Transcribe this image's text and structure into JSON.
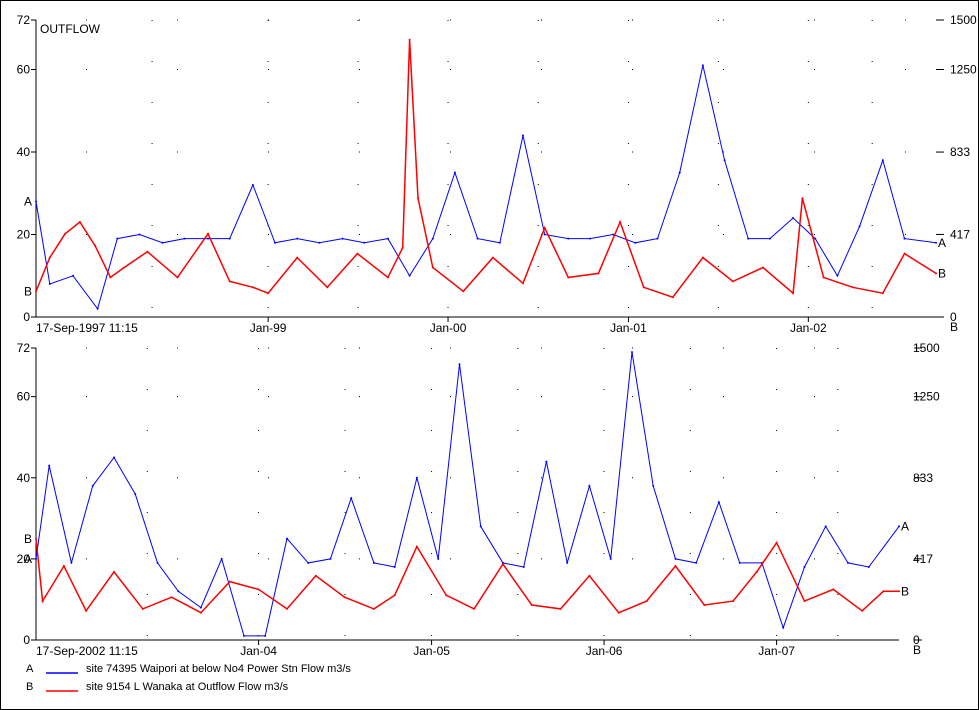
{
  "colors": {
    "series_a": "#0000ff",
    "series_b": "#ff0000",
    "frame": "#000000",
    "background": "#ffffff"
  },
  "legend": [
    {
      "key": "A",
      "text": "site 74395 Waipori at below No4 Power Stn   Flow m3/s",
      "color": "#0000ff"
    },
    {
      "key": "B",
      "text": "site 9154 L Wanaka at Outflow   Flow m3/s",
      "color": "#ff0000"
    }
  ],
  "chart_data": [
    {
      "type": "line",
      "title": "OUTFLOW",
      "start_label": "17-Sep-1997 11:15",
      "x_range": [
        "1997-09-17",
        "2002-09-17"
      ],
      "x_ticks": [
        "Jan-99",
        "Jan-00",
        "Jan-01",
        "Jan-02"
      ],
      "x_tick_dates": [
        "1999-01-01",
        "2000-01-01",
        "2001-01-01",
        "2002-01-01"
      ],
      "left_axis": {
        "ylim": [
          0,
          72
        ],
        "ticks": [
          0,
          20,
          40,
          60,
          72
        ],
        "series": "A"
      },
      "right_axis": {
        "ylim": [
          0,
          1500
        ],
        "ticks": [
          0,
          417,
          833,
          1250,
          1500
        ],
        "series": "B",
        "label": "B"
      },
      "series": [
        {
          "name": "A",
          "axis": "left",
          "color": "#0000ff",
          "x": [
            "1997-09-17",
            "1997-10-15",
            "1997-12-01",
            "1998-01-20",
            "1998-03-01",
            "1998-04-15",
            "1998-06-01",
            "1998-07-15",
            "1998-09-01",
            "1998-10-15",
            "1998-12-01",
            "1999-01-15",
            "1999-03-01",
            "1999-04-15",
            "1999-06-01",
            "1999-07-15",
            "1999-09-01",
            "1999-10-15",
            "1999-12-01",
            "2000-01-15",
            "2000-03-01",
            "2000-04-15",
            "2000-06-01",
            "2000-07-15",
            "2000-09-01",
            "2000-10-15",
            "2000-12-01",
            "2001-01-15",
            "2001-03-01",
            "2001-04-15",
            "2001-06-01",
            "2001-07-15",
            "2001-09-01",
            "2001-10-15",
            "2001-12-01",
            "2002-01-15",
            "2002-03-01",
            "2002-04-15",
            "2002-06-01",
            "2002-07-15",
            "2002-09-17"
          ],
          "values": [
            28,
            8,
            10,
            2,
            19,
            20,
            18,
            19,
            19,
            19,
            32,
            18,
            19,
            18,
            19,
            18,
            19,
            10,
            19,
            35,
            19,
            18,
            44,
            20,
            19,
            19,
            20,
            18,
            19,
            35,
            61,
            38,
            19,
            19,
            24,
            19,
            10,
            22,
            38,
            19,
            18
          ]
        },
        {
          "name": "B",
          "axis": "right",
          "color": "#ff0000",
          "x": [
            "1997-09-17",
            "1997-10-15",
            "1997-11-15",
            "1997-12-15",
            "1998-01-15",
            "1998-02-15",
            "1998-03-15",
            "1998-05-01",
            "1998-07-01",
            "1998-09-01",
            "1998-10-15",
            "1998-12-01",
            "1999-01-01",
            "1999-03-01",
            "1999-05-01",
            "1999-07-01",
            "1999-09-01",
            "1999-10-01",
            "1999-10-15",
            "1999-11-01",
            "1999-12-01",
            "2000-02-01",
            "2000-04-01",
            "2000-06-01",
            "2000-07-15",
            "2000-09-01",
            "2000-11-01",
            "2000-12-15",
            "2001-02-01",
            "2001-04-01",
            "2001-06-01",
            "2001-08-01",
            "2001-10-01",
            "2001-12-01",
            "2001-12-20",
            "2002-02-01",
            "2002-04-01",
            "2002-06-01",
            "2002-07-15",
            "2002-09-17"
          ],
          "values": [
            130,
            300,
            420,
            480,
            360,
            200,
            250,
            330,
            200,
            420,
            180,
            150,
            120,
            300,
            150,
            320,
            200,
            350,
            1400,
            600,
            250,
            130,
            300,
            170,
            450,
            200,
            220,
            480,
            150,
            100,
            300,
            180,
            250,
            120,
            600,
            200,
            150,
            120,
            320,
            220
          ]
        }
      ]
    },
    {
      "type": "line",
      "start_label": "17-Sep-2002 11:15",
      "x_range": [
        "2002-09-17",
        "2007-09-17"
      ],
      "x_ticks": [
        "Jan-04",
        "Jan-05",
        "Jan-06",
        "Jan-07"
      ],
      "x_tick_dates": [
        "2004-01-01",
        "2005-01-01",
        "2006-01-01",
        "2007-01-01"
      ],
      "left_axis": {
        "ylim": [
          0,
          72
        ],
        "ticks": [
          0,
          20,
          40,
          60,
          72
        ],
        "series": "A"
      },
      "right_axis": {
        "ylim": [
          0,
          1500
        ],
        "ticks": [
          0,
          417,
          833,
          1250,
          1500
        ],
        "series": "B",
        "label": "B"
      },
      "series": [
        {
          "name": "A",
          "axis": "left",
          "color": "#0000ff",
          "x": [
            "2002-09-17",
            "2002-10-15",
            "2002-12-01",
            "2003-01-15",
            "2003-03-01",
            "2003-04-15",
            "2003-06-01",
            "2003-07-15",
            "2003-09-01",
            "2003-10-15",
            "2003-12-01",
            "2004-01-15",
            "2004-03-01",
            "2004-04-15",
            "2004-06-01",
            "2004-07-15",
            "2004-09-01",
            "2004-10-15",
            "2004-12-01",
            "2005-01-15",
            "2005-03-01",
            "2005-04-15",
            "2005-06-01",
            "2005-07-15",
            "2005-09-01",
            "2005-10-15",
            "2005-12-01",
            "2006-01-15",
            "2006-03-01",
            "2006-04-15",
            "2006-06-01",
            "2006-07-15",
            "2006-09-01",
            "2006-10-15",
            "2006-12-01",
            "2007-01-15",
            "2007-03-01",
            "2007-04-15",
            "2007-06-01",
            "2007-07-15",
            "2007-09-17"
          ],
          "values": [
            20,
            43,
            19,
            38,
            45,
            36,
            19,
            12,
            8,
            20,
            1,
            1,
            25,
            19,
            20,
            35,
            19,
            18,
            40,
            20,
            68,
            28,
            19,
            18,
            44,
            19,
            38,
            20,
            71,
            38,
            20,
            19,
            34,
            19,
            19,
            3,
            18,
            28,
            19,
            18,
            28
          ]
        },
        {
          "name": "B",
          "axis": "right",
          "color": "#ff0000",
          "x": [
            "2002-09-17",
            "2002-10-01",
            "2002-11-15",
            "2003-01-01",
            "2003-03-01",
            "2003-05-01",
            "2003-07-01",
            "2003-09-01",
            "2003-11-01",
            "2004-01-01",
            "2004-03-01",
            "2004-05-01",
            "2004-07-01",
            "2004-09-01",
            "2004-10-15",
            "2004-12-01",
            "2005-02-01",
            "2005-04-01",
            "2005-06-01",
            "2005-08-01",
            "2005-10-01",
            "2005-12-01",
            "2006-02-01",
            "2006-04-01",
            "2006-06-01",
            "2006-08-01",
            "2006-10-01",
            "2006-11-20",
            "2007-01-01",
            "2007-03-01",
            "2007-05-01",
            "2007-07-01",
            "2007-08-15",
            "2007-09-17"
          ],
          "values": [
            520,
            200,
            380,
            150,
            350,
            160,
            220,
            140,
            300,
            260,
            160,
            330,
            220,
            160,
            230,
            480,
            230,
            160,
            390,
            180,
            160,
            330,
            140,
            200,
            380,
            180,
            200,
            350,
            500,
            200,
            260,
            150,
            250,
            250
          ]
        }
      ]
    }
  ]
}
